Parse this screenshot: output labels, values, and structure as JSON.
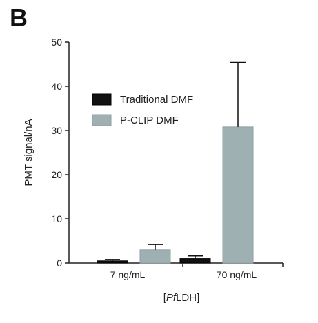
{
  "panel_label": "B",
  "chart_data": {
    "type": "bar",
    "categories": [
      "7 ng/mL",
      "70 ng/mL"
    ],
    "series": [
      {
        "name": "Traditional DMF",
        "color": "#111111",
        "values": [
          0.5,
          1.0
        ],
        "errors": [
          0.3,
          0.6
        ]
      },
      {
        "name": "P-CLIP DMF",
        "color": "#9fb0b3",
        "values": [
          3.0,
          30.8
        ],
        "errors": [
          1.2,
          14.6
        ]
      }
    ],
    "title": "",
    "xlabel": "[PfLDH]",
    "xlabel_parts": {
      "prefix": "[",
      "italic": "Pf",
      "suffix": "LDH]"
    },
    "ylabel": "PMT signal/nA",
    "ylim": [
      0,
      50
    ],
    "yticks": [
      "0",
      "10",
      "20",
      "30",
      "40",
      "50"
    ],
    "grid": false,
    "legend_position": "top-left"
  }
}
